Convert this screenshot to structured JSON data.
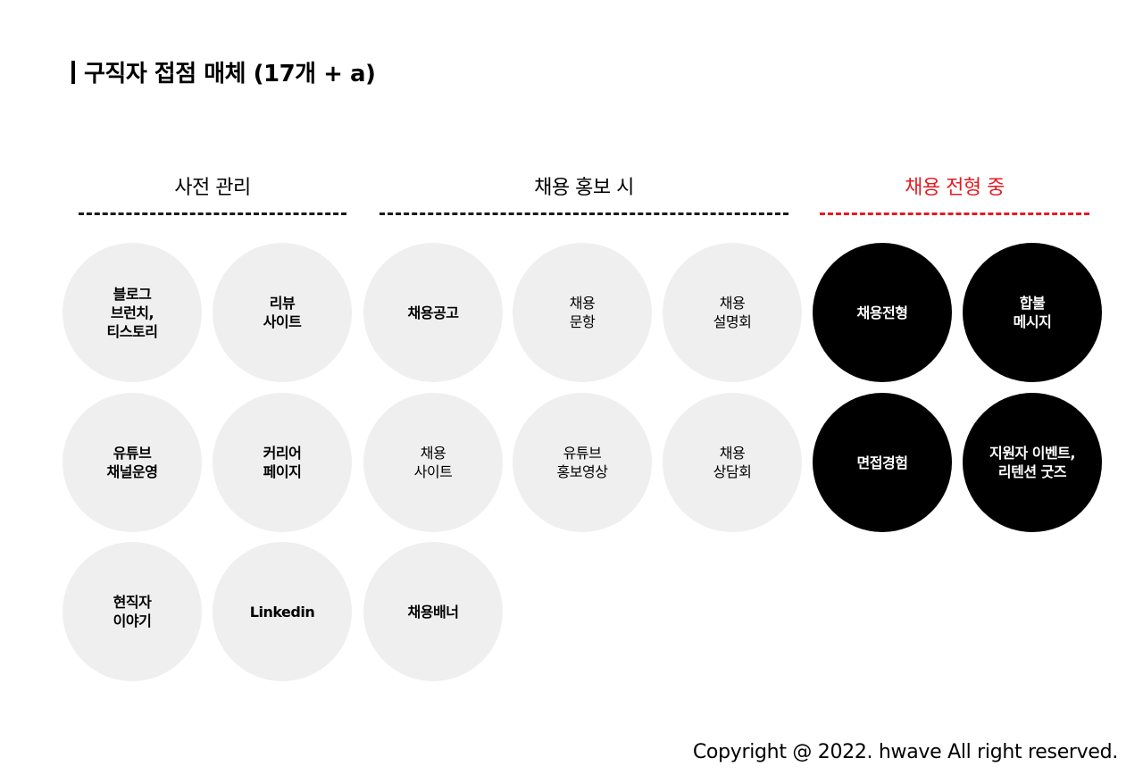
{
  "title": "구직자 접점 매체 (17개 + a)",
  "sections": [
    {
      "label": "사전 관리",
      "color": "#000000"
    },
    {
      "label": "채용 홍보 시",
      "color": "#000000"
    },
    {
      "label": "채용 전형 중",
      "color": "#e31b23"
    }
  ],
  "media": {
    "blog": "블로그\n브런치,\n티스토리",
    "review": "리뷰\n사이트",
    "job_post": "채용공고",
    "job_inquiry": "채용\n문항",
    "job_briefing": "채용\n설명회",
    "recruit_process": "채용전형",
    "result_message": "합불\n메시지",
    "youtube_channel": "유튜브\n채널운영",
    "career_page": "커리어\n페이지",
    "job_site": "채용\n사이트",
    "youtube_promo": "유튜브\n홍보영상",
    "job_consult": "채용\n상담회",
    "interview_exp": "면접경험",
    "applicant_event": "지원자 이벤트,\n리텐션 굿즈",
    "employee_story": "현직자\n이야기",
    "linkedin": "Linkedin",
    "job_banner": "채용배너"
  },
  "footer": "Copyright @ 2022. hwave All right reserved."
}
